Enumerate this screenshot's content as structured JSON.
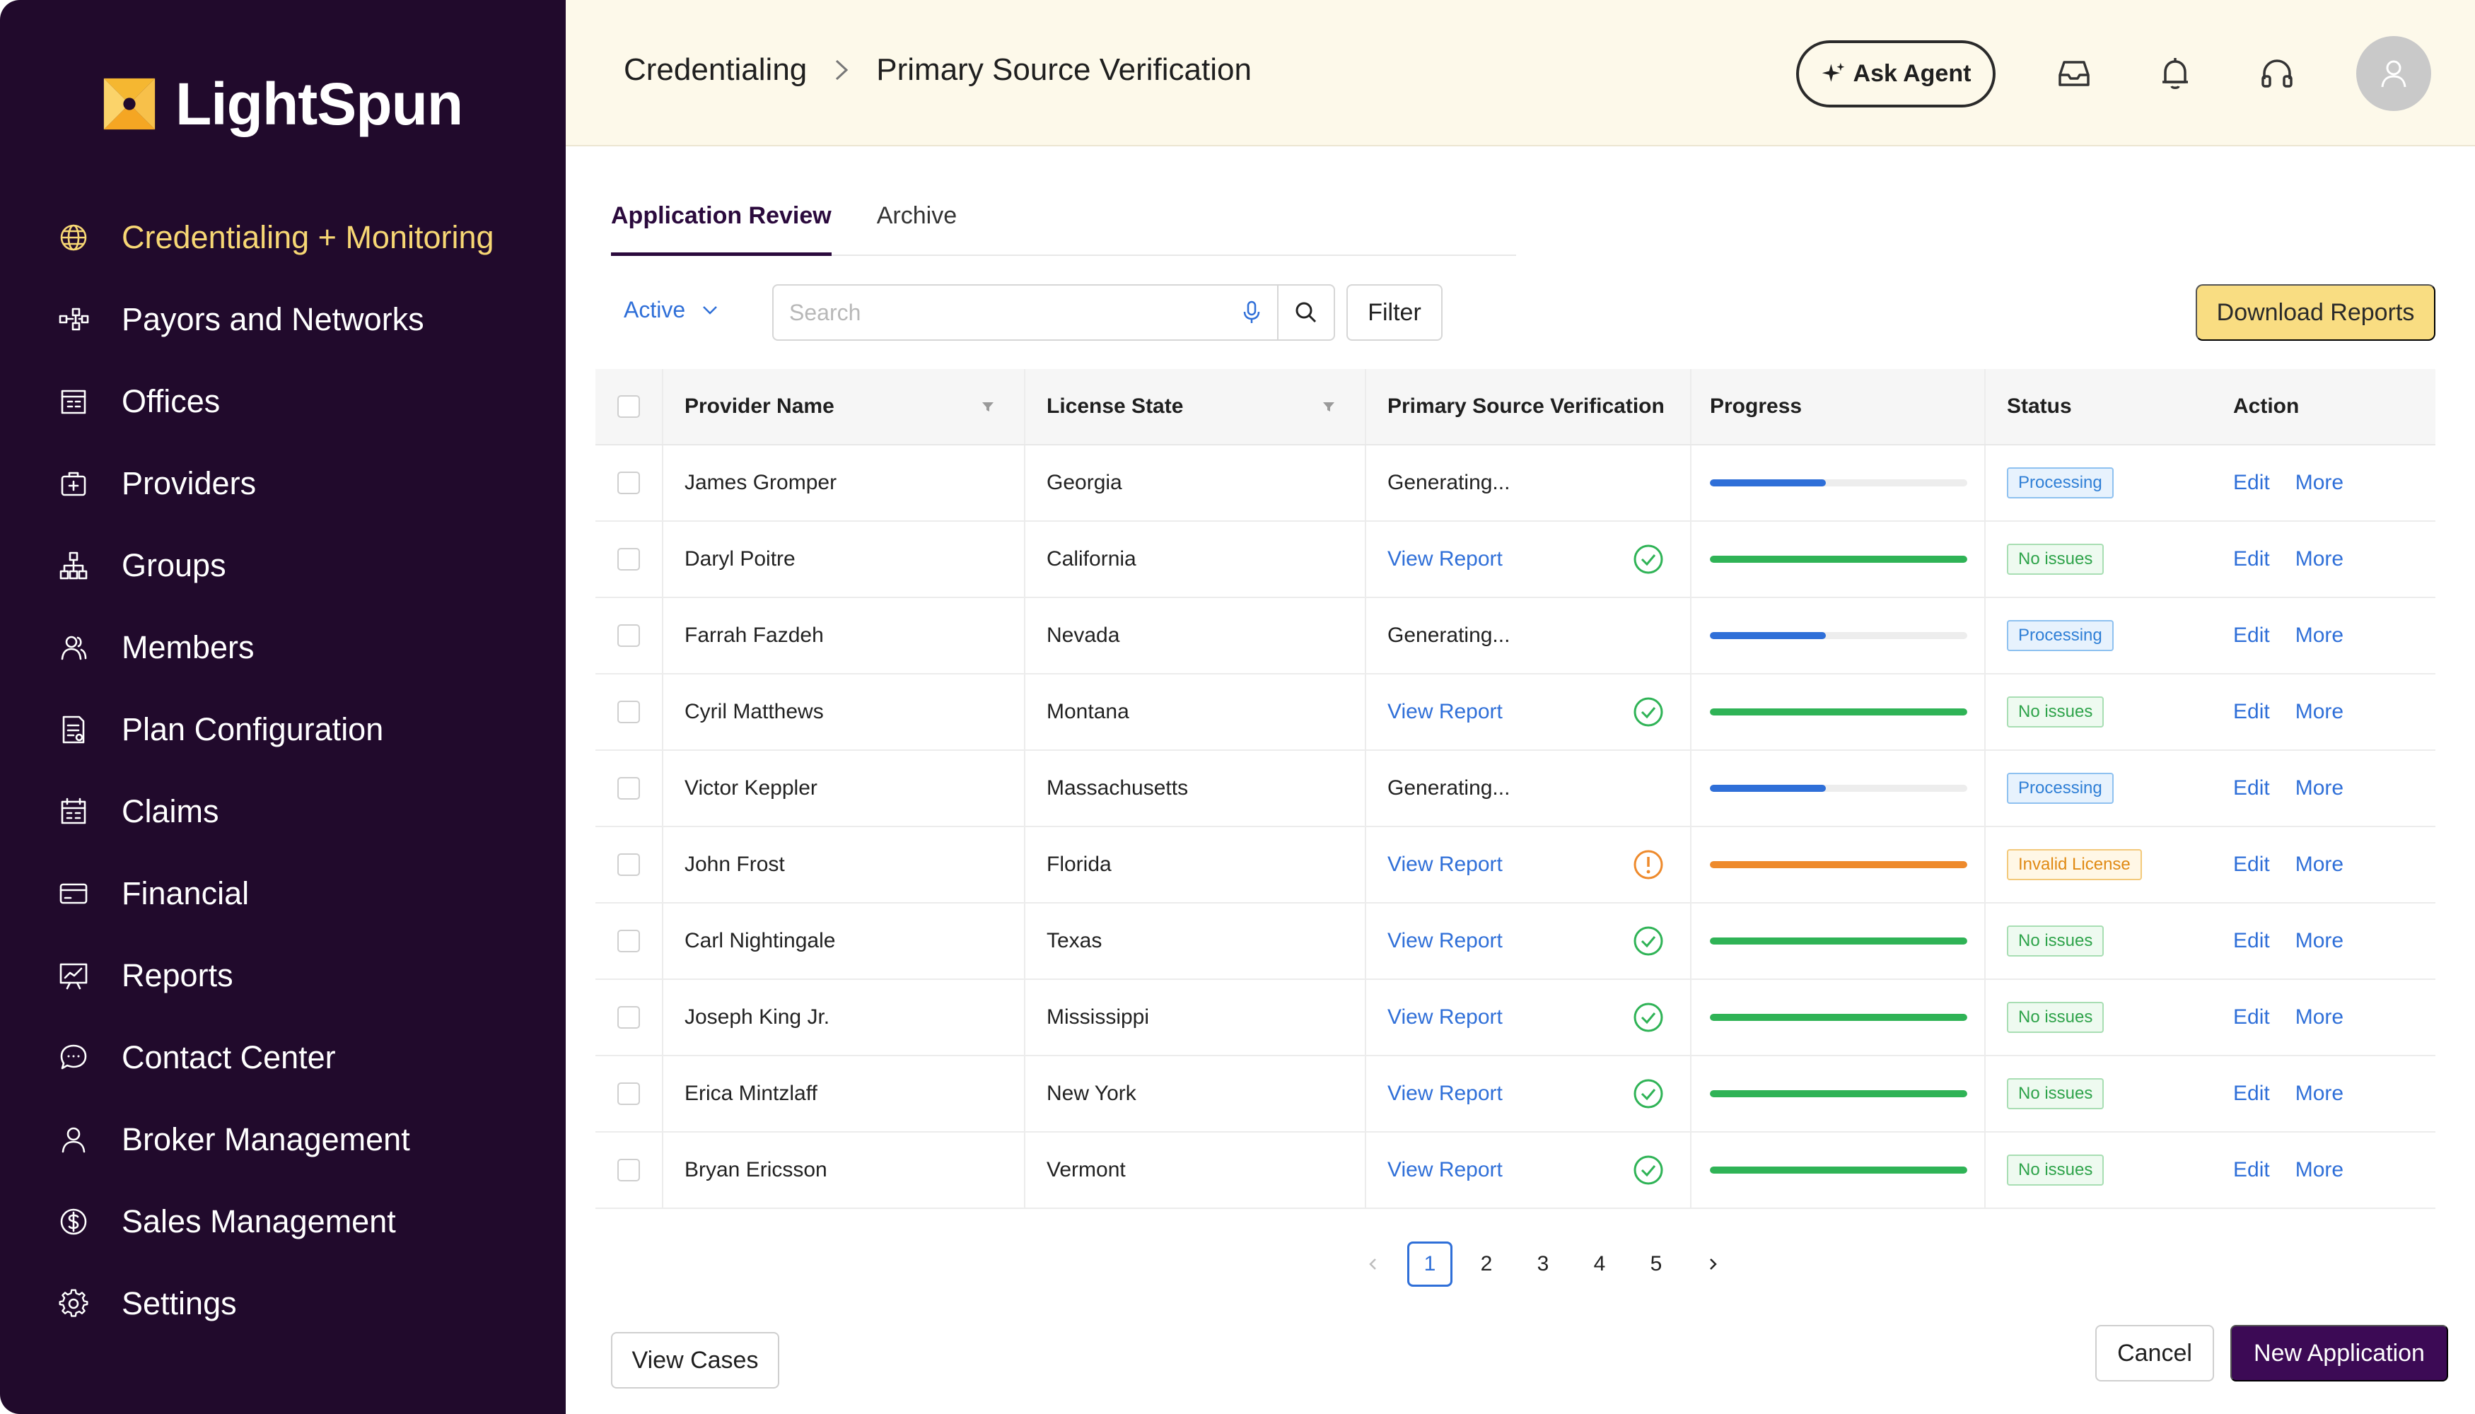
{
  "app": {
    "name": "LightSpun"
  },
  "sidebar": {
    "items": [
      {
        "label": "Credentialing + Monitoring",
        "icon": "globe-icon",
        "active": true
      },
      {
        "label": "Payors and Networks",
        "icon": "network-icon"
      },
      {
        "label": "Offices",
        "icon": "office-icon"
      },
      {
        "label": "Providers",
        "icon": "provider-icon"
      },
      {
        "label": "Groups",
        "icon": "groups-icon"
      },
      {
        "label": "Members",
        "icon": "members-icon"
      },
      {
        "label": "Plan Configuration",
        "icon": "plan-icon"
      },
      {
        "label": "Claims",
        "icon": "claims-icon"
      },
      {
        "label": "Financial",
        "icon": "card-icon"
      },
      {
        "label": "Reports",
        "icon": "reports-icon"
      },
      {
        "label": "Contact Center",
        "icon": "chat-icon"
      },
      {
        "label": "Broker Management",
        "icon": "user-icon"
      },
      {
        "label": "Sales Management",
        "icon": "dollar-icon"
      },
      {
        "label": "Settings",
        "icon": "gear-icon"
      }
    ]
  },
  "header": {
    "breadcrumb": [
      "Credentialing",
      "Primary Source Verification"
    ],
    "ask_agent": "Ask Agent"
  },
  "tabs": [
    {
      "label": "Application Review",
      "active": true
    },
    {
      "label": "Archive",
      "active": false
    }
  ],
  "toolbar": {
    "status_filter": "Active",
    "search_placeholder": "Search",
    "filter_label": "Filter",
    "download_label": "Download Reports"
  },
  "table": {
    "columns": [
      "Provider Name",
      "License State",
      "Primary Source Verification",
      "Progress",
      "Status",
      "Action"
    ],
    "rows": [
      {
        "name": "James Gromper",
        "state": "Georgia",
        "psv": "Generating...",
        "psv_link": false,
        "psv_status": "",
        "progress": 0.45,
        "status": "Processing",
        "status_type": "processing"
      },
      {
        "name": "Daryl Poitre",
        "state": "California",
        "psv": "View Report",
        "psv_link": true,
        "psv_status": "check",
        "progress": 1.0,
        "status": "No issues",
        "status_type": "ok"
      },
      {
        "name": "Farrah Fazdeh",
        "state": "Nevada",
        "psv": "Generating...",
        "psv_link": false,
        "psv_status": "",
        "progress": 0.45,
        "status": "Processing",
        "status_type": "processing"
      },
      {
        "name": "Cyril Matthews",
        "state": "Montana",
        "psv": "View Report",
        "psv_link": true,
        "psv_status": "check",
        "progress": 1.0,
        "status": "No issues",
        "status_type": "ok"
      },
      {
        "name": "Victor Keppler",
        "state": "Massachusetts",
        "psv": "Generating...",
        "psv_link": false,
        "psv_status": "",
        "progress": 0.45,
        "status": "Processing",
        "status_type": "processing"
      },
      {
        "name": "John Frost",
        "state": "Florida",
        "psv": "View Report",
        "psv_link": true,
        "psv_status": "warning",
        "progress": 1.0,
        "status": "Invalid License",
        "status_type": "warn"
      },
      {
        "name": "Carl Nightingale",
        "state": "Texas",
        "psv": "View Report",
        "psv_link": true,
        "psv_status": "check",
        "progress": 1.0,
        "status": "No issues",
        "status_type": "ok"
      },
      {
        "name": "Joseph King Jr.",
        "state": "Mississippi",
        "psv": "View Report",
        "psv_link": true,
        "psv_status": "check",
        "progress": 1.0,
        "status": "No issues",
        "status_type": "ok"
      },
      {
        "name": "Erica Mintzlaff",
        "state": "New York",
        "psv": "View Report",
        "psv_link": true,
        "psv_status": "check",
        "progress": 1.0,
        "status": "No issues",
        "status_type": "ok"
      },
      {
        "name": "Bryan Ericsson",
        "state": "Vermont",
        "psv": "View Report",
        "psv_link": true,
        "psv_status": "check",
        "progress": 1.0,
        "status": "No issues",
        "status_type": "ok"
      }
    ],
    "actions": {
      "edit": "Edit",
      "more": "More"
    }
  },
  "pagination": {
    "pages": [
      "1",
      "2",
      "3",
      "4",
      "5"
    ],
    "current": "1"
  },
  "footer": {
    "view_cases": "View Cases",
    "cancel": "Cancel",
    "new_application": "New Application"
  },
  "colors": {
    "sidebar_bg": "#210a2c",
    "active_nav": "#f7d774",
    "header_bg": "#fdf9ea",
    "link": "#2f6fd8",
    "progress_processing": "#2f6fd8",
    "progress_ok": "#2fb356",
    "progress_warn": "#ee8a2c",
    "primary_button": "#3c0a55",
    "download_button": "#f9dd82"
  }
}
